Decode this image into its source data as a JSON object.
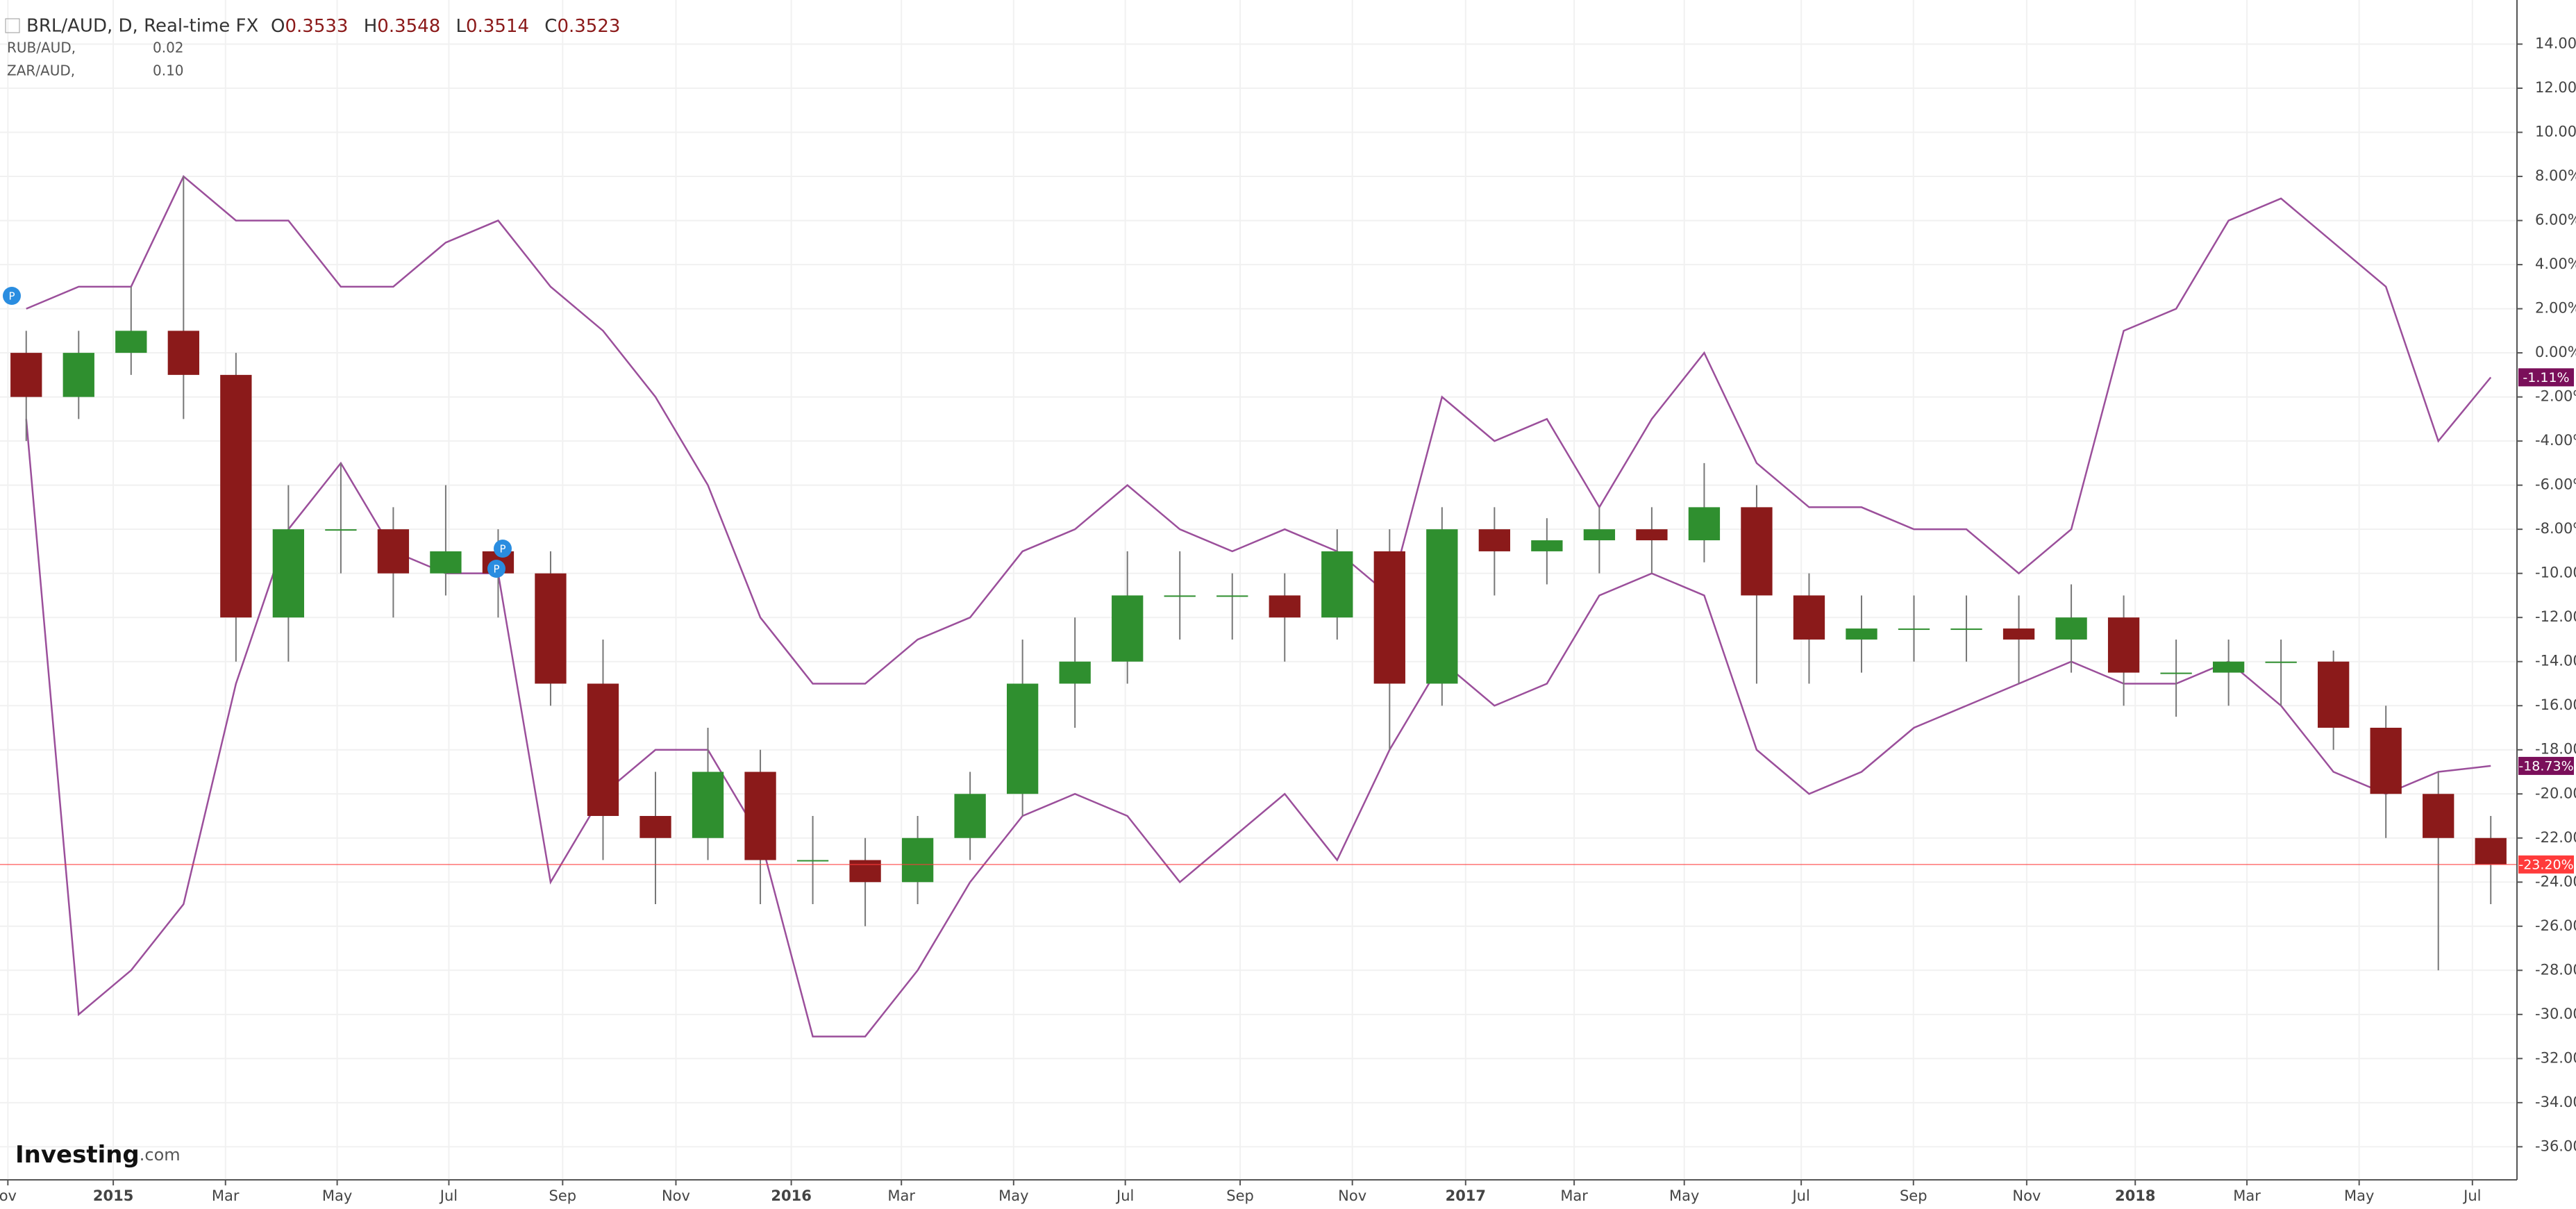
{
  "header": {
    "symbol": "BRL/AUD, D, Real-time FX",
    "ohlc": [
      {
        "label": "O",
        "value": "0.3533"
      },
      {
        "label": "H",
        "value": "0.3548"
      },
      {
        "label": "L",
        "value": "0.3514"
      },
      {
        "label": "C",
        "value": "0.3523"
      }
    ]
  },
  "logo": {
    "brand": "Investing",
    "suffix": ".com"
  },
  "event_marker": "P",
  "chart_data": {
    "type": "candlestick",
    "candles": {
      "up_color": "#2f8f2f",
      "down_color": "#8b1a1a",
      "wick_color": "#777777",
      "last_label": "-23.20%",
      "price_line_color": "#ff3b3b",
      "open": [
        0,
        -2,
        0,
        1,
        -1,
        -12,
        -8,
        -8,
        -10,
        -9,
        -10,
        -15,
        -21,
        -22,
        -19,
        -23,
        -23,
        -24,
        -22,
        -20,
        -15,
        -14,
        -11,
        -11,
        -11,
        -12,
        -9,
        -15,
        -8,
        -9,
        -8.5,
        -8,
        -8.5,
        -7,
        -11,
        -13,
        -12.5,
        -12.5,
        -12.5,
        -13,
        -12,
        -14.5,
        -14.5,
        -14,
        -14,
        -17,
        -20,
        -22
      ],
      "high": [
        1,
        1,
        3,
        8,
        0,
        -6,
        -5,
        -7,
        -6,
        -8,
        -9,
        -13,
        -19,
        -17,
        -18,
        -21,
        -22,
        -21,
        -19,
        -13,
        -12,
        -9,
        -9,
        -10,
        -10,
        -8,
        -8,
        -7,
        -7,
        -7.5,
        -7,
        -7,
        -5,
        -6,
        -10,
        -11,
        -11,
        -11,
        -11,
        -10.5,
        -11,
        -13,
        -13,
        -13,
        -13.5,
        -16,
        -19,
        -21
      ],
      "low": [
        -4,
        -3,
        -1,
        -3,
        -14,
        -14,
        -10,
        -12,
        -11,
        -12,
        -16,
        -23,
        -25,
        -23,
        -25,
        -25,
        -26,
        -25,
        -23,
        -21,
        -17,
        -15,
        -13,
        -13,
        -14,
        -13,
        -18,
        -16,
        -11,
        -10.5,
        -10,
        -10,
        -9.5,
        -15,
        -15,
        -14.5,
        -14,
        -14,
        -15,
        -14.5,
        -16,
        -16.5,
        -16,
        -16,
        -18,
        -22,
        -28,
        -25
      ],
      "close": [
        -2,
        0,
        1,
        -1,
        -12,
        -8,
        -8,
        -10,
        -9,
        -10,
        -15,
        -21,
        -22,
        -19,
        -23,
        -23,
        -24,
        -22,
        -20,
        -15,
        -14,
        -11,
        -11,
        -11,
        -12,
        -9,
        -15,
        -8,
        -9,
        -8.5,
        -8,
        -8.5,
        -7,
        -11,
        -13,
        -12.5,
        -12.5,
        -12.5,
        -13,
        -12,
        -14.5,
        -14.5,
        -14,
        -14,
        -17,
        -20,
        -22,
        -23.2
      ]
    },
    "series": [
      {
        "name": "RUB/AUD,",
        "legend_value": "0.02",
        "color": "#9b4f9b",
        "label_color": "#7a0f5a",
        "last_label": "-18.73%",
        "values": [
          -3,
          -30,
          -28,
          -25,
          -15,
          -8,
          -5,
          -9,
          -10,
          -10,
          -24,
          -20,
          -18,
          -18,
          -22,
          -31,
          -31,
          -28,
          -24,
          -21,
          -20,
          -21,
          -24,
          -22,
          -20,
          -23,
          -18,
          -14,
          -16,
          -15,
          -11,
          -10,
          -11,
          -18,
          -20,
          -19,
          -17,
          -16,
          -15,
          -14,
          -15,
          -15,
          -14,
          -16,
          -19,
          -20,
          -19,
          -18.73
        ]
      },
      {
        "name": "ZAR/AUD,",
        "legend_value": "0.10",
        "color": "#9b4f9b",
        "label_color": "#7a0f5a",
        "last_label": "-1.11%",
        "values": [
          2,
          3,
          3,
          8,
          6,
          6,
          3,
          3,
          5,
          6,
          3,
          1,
          -2,
          -6,
          -12,
          -15,
          -15,
          -13,
          -12,
          -9,
          -8,
          -6,
          -8,
          -9,
          -8,
          -9,
          -11,
          -2,
          -4,
          -3,
          -7,
          -3,
          0,
          -5,
          -7,
          -7,
          -8,
          -8,
          -10,
          -8,
          1,
          2,
          6,
          7,
          5,
          3,
          -4,
          -1.11
        ]
      }
    ],
    "xlim": [
      -0.5,
      47.5
    ],
    "xticks": [
      {
        "value": -0.35,
        "label": "ov"
      },
      {
        "value": 1.66,
        "label": "2015"
      },
      {
        "value": 3.8,
        "label": "Mar"
      },
      {
        "value": 5.93,
        "label": "May"
      },
      {
        "value": 8.06,
        "label": "Jul"
      },
      {
        "value": 10.23,
        "label": "Sep"
      },
      {
        "value": 12.39,
        "label": "Nov"
      },
      {
        "value": 14.59,
        "label": "2016"
      },
      {
        "value": 16.69,
        "label": "Mar"
      },
      {
        "value": 18.83,
        "label": "May"
      },
      {
        "value": 20.96,
        "label": "Jul"
      },
      {
        "value": 23.15,
        "label": "Sep"
      },
      {
        "value": 25.29,
        "label": "Nov"
      },
      {
        "value": 27.45,
        "label": "2017"
      },
      {
        "value": 29.52,
        "label": "Mar"
      },
      {
        "value": 31.62,
        "label": "May"
      },
      {
        "value": 33.85,
        "label": "Jul"
      },
      {
        "value": 35.99,
        "label": "Sep"
      },
      {
        "value": 38.15,
        "label": "Nov"
      },
      {
        "value": 40.22,
        "label": "2018"
      },
      {
        "value": 42.35,
        "label": "Mar"
      },
      {
        "value": 44.49,
        "label": "May"
      },
      {
        "value": 46.65,
        "label": "Jul"
      }
    ],
    "ylim": [
      -37.5,
      16
    ],
    "yticks": [
      {
        "value": 14,
        "label": "14.00%"
      },
      {
        "value": 12,
        "label": "12.00%"
      },
      {
        "value": 10,
        "label": "10.00%"
      },
      {
        "value": 8,
        "label": "8.00%"
      },
      {
        "value": 6,
        "label": "6.00%"
      },
      {
        "value": 4,
        "label": "4.00%"
      },
      {
        "value": 2,
        "label": "2.00%"
      },
      {
        "value": 0,
        "label": "0.00%"
      },
      {
        "value": -2,
        "label": "-2.00%"
      },
      {
        "value": -4,
        "label": "-4.00%"
      },
      {
        "value": -6,
        "label": "-6.00%"
      },
      {
        "value": -8,
        "label": "-8.00%"
      },
      {
        "value": -10,
        "label": "-10.00%"
      },
      {
        "value": -12,
        "label": "-12.00%"
      },
      {
        "value": -14,
        "label": "-14.00%"
      },
      {
        "value": -16,
        "label": "-16.00%"
      },
      {
        "value": -18,
        "label": "-18.00%"
      },
      {
        "value": -20,
        "label": "-20.00%"
      },
      {
        "value": -22,
        "label": "-22.00%"
      },
      {
        "value": -24,
        "label": "-24.00%"
      },
      {
        "value": -26,
        "label": "-26.00%"
      },
      {
        "value": -28,
        "label": "-28.00%"
      },
      {
        "value": -30,
        "label": "-30.00%"
      },
      {
        "value": -32,
        "label": "-32.00%"
      },
      {
        "value": -34,
        "label": "-34.00%"
      },
      {
        "value": -36,
        "label": "-36.00%"
      }
    ],
    "grid": true
  }
}
